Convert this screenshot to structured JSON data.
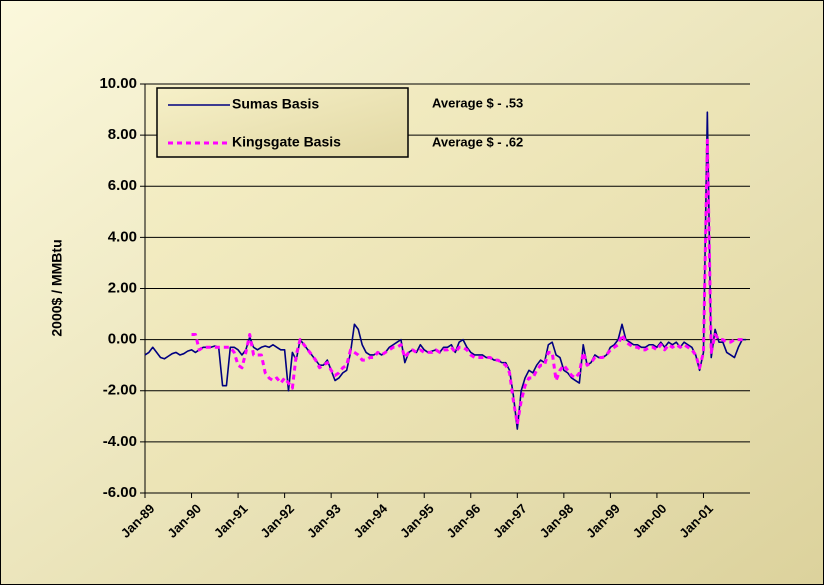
{
  "chart_data": {
    "type": "line",
    "y_label": "2000$ / MMBtu",
    "annotations": [
      "Average $ - .53",
      "Average $ - .62"
    ],
    "categories": [
      "Jan-89",
      null,
      null,
      null,
      null,
      null,
      null,
      null,
      null,
      null,
      null,
      null,
      "Jan-90",
      null,
      null,
      null,
      null,
      null,
      null,
      null,
      null,
      null,
      null,
      null,
      "Jan-91",
      null,
      null,
      null,
      null,
      null,
      null,
      null,
      null,
      null,
      null,
      null,
      "Jan-92",
      null,
      null,
      null,
      null,
      null,
      null,
      null,
      null,
      null,
      null,
      null,
      "Jan-93",
      null,
      null,
      null,
      null,
      null,
      null,
      null,
      null,
      null,
      null,
      null,
      "Jan-94",
      null,
      null,
      null,
      null,
      null,
      null,
      null,
      null,
      null,
      null,
      null,
      "Jan-95",
      null,
      null,
      null,
      null,
      null,
      null,
      null,
      null,
      null,
      null,
      null,
      "Jan-96",
      null,
      null,
      null,
      null,
      null,
      null,
      null,
      null,
      null,
      null,
      null,
      "Jan-97",
      null,
      null,
      null,
      null,
      null,
      null,
      null,
      null,
      null,
      null,
      null,
      "Jan-98",
      null,
      null,
      null,
      null,
      null,
      null,
      null,
      null,
      null,
      null,
      null,
      "Jan-99",
      null,
      null,
      null,
      null,
      null,
      null,
      null,
      null,
      null,
      null,
      null,
      "Jan-00",
      null,
      null,
      null,
      null,
      null,
      null,
      null,
      null,
      null,
      null,
      null,
      "Jan-01",
      null,
      null,
      null,
      null,
      null,
      null,
      null,
      null,
      null,
      null,
      null
    ],
    "series": [
      {
        "name": "Sumas Basis",
        "color": "#000080",
        "style": "solid",
        "values": [
          -0.6,
          -0.5,
          -0.3,
          -0.5,
          -0.7,
          -0.75,
          -0.65,
          -0.55,
          -0.5,
          -0.6,
          -0.55,
          -0.45,
          -0.4,
          -0.5,
          -0.4,
          -0.3,
          -0.3,
          -0.3,
          -0.25,
          -0.3,
          -1.8,
          -1.8,
          -0.3,
          -0.3,
          -0.4,
          -0.6,
          -0.4,
          0.1,
          -0.3,
          -0.4,
          -0.3,
          -0.25,
          -0.3,
          -0.2,
          -0.3,
          -0.4,
          -0.4,
          -2.0,
          -0.5,
          -0.8,
          0.0,
          -0.2,
          -0.4,
          -0.6,
          -0.8,
          -1.0,
          -1.0,
          -0.8,
          -1.2,
          -1.6,
          -1.5,
          -1.3,
          -1.2,
          -0.5,
          0.6,
          0.4,
          -0.2,
          -0.5,
          -0.6,
          -0.6,
          -0.5,
          -0.6,
          -0.5,
          -0.3,
          -0.2,
          -0.1,
          0.0,
          -0.9,
          -0.5,
          -0.4,
          -0.5,
          -0.2,
          -0.4,
          -0.5,
          -0.45,
          -0.4,
          -0.5,
          -0.3,
          -0.3,
          -0.2,
          -0.5,
          -0.1,
          0.0,
          -0.3,
          -0.5,
          -0.6,
          -0.6,
          -0.6,
          -0.7,
          -0.7,
          -0.8,
          -0.8,
          -0.9,
          -0.9,
          -1.2,
          -2.2,
          -3.5,
          -2.0,
          -1.5,
          -1.2,
          -1.3,
          -1.0,
          -0.8,
          -0.9,
          -0.2,
          -0.1,
          -0.6,
          -0.7,
          -1.2,
          -1.3,
          -1.5,
          -1.6,
          -1.7,
          -0.2,
          -1.0,
          -0.9,
          -0.6,
          -0.7,
          -0.7,
          -0.6,
          -0.3,
          -0.2,
          0.0,
          0.6,
          0.0,
          -0.1,
          -0.2,
          -0.2,
          -0.3,
          -0.3,
          -0.2,
          -0.2,
          -0.3,
          -0.1,
          -0.3,
          -0.1,
          -0.2,
          -0.1,
          -0.3,
          -0.1,
          -0.2,
          -0.3,
          -0.6,
          -1.2,
          -0.5,
          8.9,
          -0.7,
          0.4,
          -0.1,
          -0.1,
          -0.5,
          -0.6,
          -0.7,
          -0.3,
          0.0,
          0.0
        ]
      },
      {
        "name": "Kingsgate Basis",
        "color": "#ff00ff",
        "style": "dashed",
        "values": [
          null,
          null,
          null,
          null,
          null,
          null,
          null,
          null,
          null,
          null,
          null,
          null,
          0.2,
          0.2,
          -0.4,
          -0.3,
          -0.3,
          -0.3,
          -0.3,
          -0.3,
          -0.3,
          -0.3,
          -0.3,
          -0.5,
          -1.0,
          -1.1,
          -0.5,
          0.2,
          -0.6,
          -0.6,
          -0.6,
          -1.3,
          -1.5,
          -1.6,
          -1.5,
          -1.7,
          -1.5,
          -1.7,
          -1.9,
          -0.6,
          0.0,
          -0.2,
          -0.4,
          -0.6,
          -0.8,
          -1.1,
          -1.0,
          -0.9,
          -1.2,
          -1.4,
          -1.3,
          -1.1,
          -1.0,
          -0.4,
          -0.5,
          -0.6,
          -0.8,
          -0.8,
          -0.7,
          -0.7,
          -0.5,
          -0.6,
          -0.5,
          -0.4,
          -0.3,
          -0.3,
          -0.2,
          -0.7,
          -0.5,
          -0.4,
          -0.5,
          -0.4,
          -0.5,
          -0.5,
          -0.5,
          -0.4,
          -0.5,
          -0.4,
          -0.4,
          -0.3,
          -0.5,
          -0.3,
          -0.3,
          -0.4,
          -0.6,
          -0.7,
          -0.7,
          -0.7,
          -0.7,
          -0.7,
          -0.8,
          -0.8,
          -0.9,
          -1.0,
          -1.3,
          -2.4,
          -3.3,
          -2.4,
          -1.8,
          -1.5,
          -1.5,
          -1.2,
          -1.0,
          -1.0,
          -0.5,
          -0.5,
          -1.6,
          -1.2,
          -1.0,
          -1.2,
          -1.4,
          -1.5,
          -1.3,
          -0.5,
          -1.0,
          -0.9,
          -0.7,
          -0.7,
          -0.7,
          -0.6,
          -0.4,
          -0.3,
          -0.2,
          0.2,
          -0.1,
          -0.2,
          -0.3,
          -0.3,
          -0.4,
          -0.4,
          -0.3,
          -0.3,
          -0.4,
          -0.2,
          -0.4,
          -0.2,
          -0.3,
          -0.2,
          -0.3,
          -0.2,
          -0.3,
          -0.4,
          -0.6,
          -1.1,
          -0.5,
          7.8,
          -0.5,
          0.2,
          0.0,
          0.0,
          -0.1,
          -0.1,
          0.0,
          0.0,
          0.0,
          0.0
        ]
      }
    ],
    "ylim": [
      -6,
      10
    ],
    "yticks": [
      {
        "value": -6,
        "label": "-6.00"
      },
      {
        "value": -4,
        "label": "-4.00"
      },
      {
        "value": -2,
        "label": "-2.00"
      },
      {
        "value": 0,
        "label": "0.00"
      },
      {
        "value": 2,
        "label": "2.00"
      },
      {
        "value": 4,
        "label": "4.00"
      },
      {
        "value": 6,
        "label": "6.00"
      },
      {
        "value": 8,
        "label": "8.00"
      },
      {
        "value": 10,
        "label": "10.00"
      }
    ],
    "grid": true,
    "legend": "top-left"
  }
}
